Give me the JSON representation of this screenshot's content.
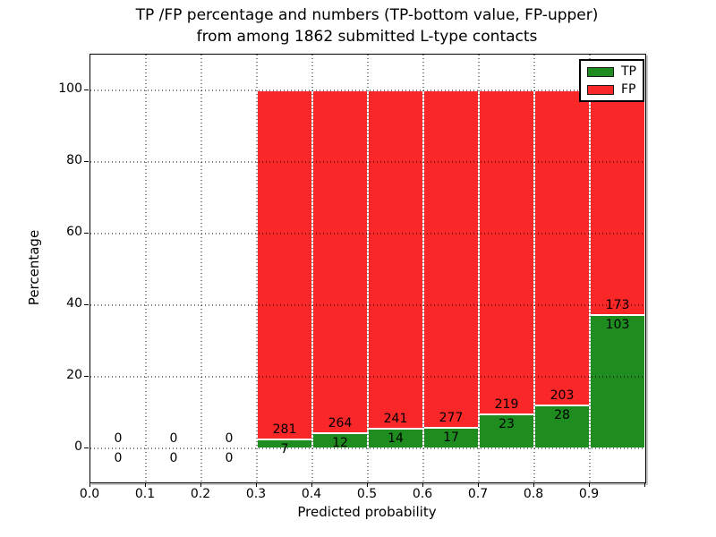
{
  "title": {
    "line1": "TP /FP percentage and numbers (TP-bottom value, FP-upper)",
    "line2": "from among 1862 submitted L-type contacts"
  },
  "axes_labels": {
    "xlabel": "Predicted probability",
    "ylabel": "Percentage"
  },
  "legend": {
    "items": [
      {
        "label": "TP",
        "color": "#1e8c1e"
      },
      {
        "label": "FP",
        "color": "#f92727"
      }
    ]
  },
  "chart_data": {
    "type": "bar",
    "stacked": true,
    "title": "TP /FP percentage and numbers (TP-bottom value, FP-upper) from among 1862 submitted L-type contacts",
    "total_contacts": 1862,
    "xlabel": "Predicted probability",
    "ylabel": "Percentage",
    "xlim": [
      0.0,
      1.0
    ],
    "ylim": [
      -9.5,
      110
    ],
    "grid": "dotted-black-both-axes",
    "legend_position": "upper-right",
    "colors": {
      "tp": "#1e8c1e",
      "fp": "#f92727",
      "bar_edge": "#ffffff",
      "grid": "#000000"
    },
    "xticks": [
      {
        "v": 0.0,
        "label": "0.0"
      },
      {
        "v": 0.1,
        "label": "0.1"
      },
      {
        "v": 0.2,
        "label": "0.2"
      },
      {
        "v": 0.3,
        "label": "0.3"
      },
      {
        "v": 0.4,
        "label": "0.4"
      },
      {
        "v": 0.5,
        "label": "0.5"
      },
      {
        "v": 0.6,
        "label": "0.6"
      },
      {
        "v": 0.7,
        "label": "0.7"
      },
      {
        "v": 0.8,
        "label": "0.8"
      },
      {
        "v": 0.9,
        "label": "0.9"
      },
      {
        "v": 1.0,
        "label": ""
      }
    ],
    "yticks": [
      {
        "v": 0,
        "label": "0"
      },
      {
        "v": 20,
        "label": "20"
      },
      {
        "v": 40,
        "label": "40"
      },
      {
        "v": 60,
        "label": "60"
      },
      {
        "v": 80,
        "label": "80"
      },
      {
        "v": 100,
        "label": "100"
      }
    ],
    "series": [
      {
        "name": "TP",
        "color": "#1e8c1e"
      },
      {
        "name": "FP",
        "color": "#f92727"
      }
    ],
    "bins": [
      {
        "x0": 0.0,
        "x1": 0.1,
        "tp_count": 0,
        "fp_count": 0,
        "tp_pct": 0,
        "fp_pct": 0
      },
      {
        "x0": 0.1,
        "x1": 0.2,
        "tp_count": 0,
        "fp_count": 0,
        "tp_pct": 0,
        "fp_pct": 0
      },
      {
        "x0": 0.2,
        "x1": 0.3,
        "tp_count": 0,
        "fp_count": 0,
        "tp_pct": 0,
        "fp_pct": 0
      },
      {
        "x0": 0.3,
        "x1": 0.4,
        "tp_count": 7,
        "fp_count": 281,
        "tp_pct": 2.43,
        "fp_pct": 97.57
      },
      {
        "x0": 0.4,
        "x1": 0.5,
        "tp_count": 12,
        "fp_count": 264,
        "tp_pct": 4.35,
        "fp_pct": 95.65
      },
      {
        "x0": 0.5,
        "x1": 0.6,
        "tp_count": 14,
        "fp_count": 241,
        "tp_pct": 5.49,
        "fp_pct": 94.51
      },
      {
        "x0": 0.6,
        "x1": 0.7,
        "tp_count": 17,
        "fp_count": 277,
        "tp_pct": 5.78,
        "fp_pct": 94.22
      },
      {
        "x0": 0.7,
        "x1": 0.8,
        "tp_count": 23,
        "fp_count": 219,
        "tp_pct": 9.5,
        "fp_pct": 90.5
      },
      {
        "x0": 0.8,
        "x1": 0.9,
        "tp_count": 28,
        "fp_count": 203,
        "tp_pct": 12.12,
        "fp_pct": 87.88
      },
      {
        "x0": 0.9,
        "x1": 1.0,
        "tp_count": 103,
        "fp_count": 173,
        "tp_pct": 37.32,
        "fp_pct": 62.68
      }
    ]
  }
}
